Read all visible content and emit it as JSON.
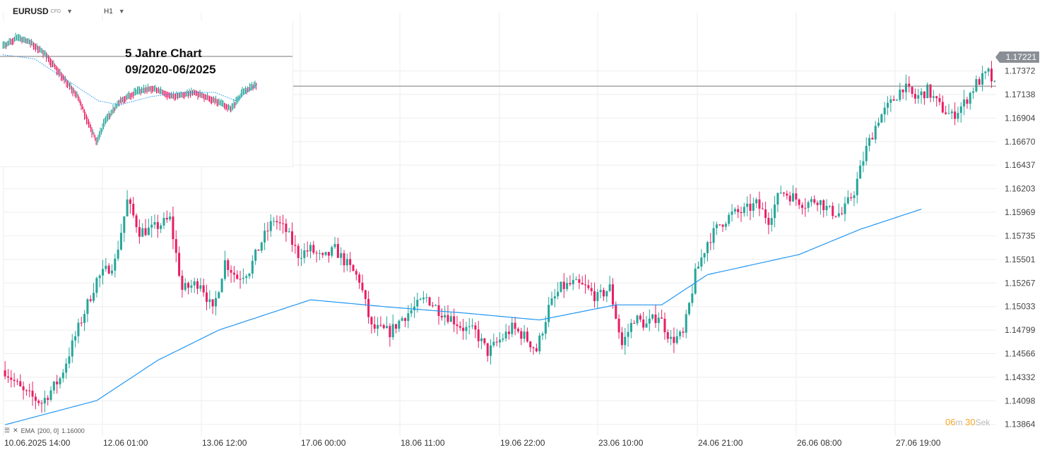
{
  "toolbar": {
    "symbol": "EURUSD",
    "symbol_type": "CFD",
    "timeframe": "H1",
    "caret_icon": "chevron-down-icon"
  },
  "inset": {
    "title_line1": "5 Jahre Chart",
    "title_line2": "09/2020-06/2025"
  },
  "indicator": {
    "label": "EMA",
    "params": "[200,  0]",
    "value": "1.16000",
    "color": "#2196f3"
  },
  "current_price": "1.17221",
  "countdown": {
    "min": "06",
    "min_unit": "m",
    "sec": "30",
    "sec_unit": "Sek"
  },
  "colors": {
    "up": "#26a69a",
    "down": "#e91e63",
    "ema": "#2196f3",
    "grid": "#eeeeee",
    "price_line": "#777777"
  },
  "chart_data": {
    "type": "candlestick",
    "instrument": "EURUSD",
    "timeframe": "H1",
    "ylim": [
      1.1375,
      1.1795
    ],
    "y_ticks": [
      "1.17372",
      "1.17138",
      "1.16904",
      "1.16670",
      "1.16437",
      "1.16203",
      "1.15969",
      "1.15735",
      "1.15501",
      "1.15267",
      "1.15033",
      "1.14799",
      "1.14566",
      "1.14332",
      "1.14098",
      "1.13864"
    ],
    "x_ticks": [
      "10.06.2025  14:00",
      "12.06  01:00",
      "13.06  12:00",
      "17.06  00:00",
      "18.06  11:00",
      "19.06  22:00",
      "23.06  10:00",
      "24.06  21:00",
      "26.06  08:00",
      "27.06  19:00"
    ],
    "close_path": [
      [
        0,
        1.144
      ],
      [
        6,
        1.1418
      ],
      [
        12,
        1.1408
      ],
      [
        18,
        1.1432
      ],
      [
        24,
        1.1482
      ],
      [
        30,
        1.153
      ],
      [
        36,
        1.1548
      ],
      [
        40,
        1.1608
      ],
      [
        44,
        1.1578
      ],
      [
        48,
        1.158
      ],
      [
        54,
        1.159
      ],
      [
        58,
        1.152
      ],
      [
        64,
        1.1528
      ],
      [
        68,
        1.1498
      ],
      [
        72,
        1.1548
      ],
      [
        76,
        1.1532
      ],
      [
        80,
        1.154
      ],
      [
        84,
        1.1568
      ],
      [
        88,
        1.159
      ],
      [
        92,
        1.1578
      ],
      [
        96,
        1.1555
      ],
      [
        100,
        1.156
      ],
      [
        104,
        1.155
      ],
      [
        108,
        1.156
      ],
      [
        112,
        1.1545
      ],
      [
        116,
        1.153
      ],
      [
        120,
        1.1482
      ],
      [
        126,
        1.1478
      ],
      [
        130,
        1.1492
      ],
      [
        134,
        1.1502
      ],
      [
        138,
        1.1512
      ],
      [
        142,
        1.15
      ],
      [
        146,
        1.1492
      ],
      [
        150,
        1.1482
      ],
      [
        154,
        1.1478
      ],
      [
        158,
        1.1458
      ],
      [
        162,
        1.147
      ],
      [
        166,
        1.1482
      ],
      [
        170,
        1.1474
      ],
      [
        174,
        1.146
      ],
      [
        178,
        1.1502
      ],
      [
        182,
        1.1522
      ],
      [
        186,
        1.1526
      ],
      [
        190,
        1.1522
      ],
      [
        194,
        1.1512
      ],
      [
        198,
        1.1522
      ],
      [
        202,
        1.1465
      ],
      [
        206,
        1.1492
      ],
      [
        210,
        1.1485
      ],
      [
        214,
        1.1495
      ],
      [
        218,
        1.147
      ],
      [
        222,
        1.1475
      ],
      [
        226,
        1.1535
      ],
      [
        230,
        1.1568
      ],
      [
        234,
        1.1585
      ],
      [
        238,
        1.1595
      ],
      [
        242,
        1.1598
      ],
      [
        246,
        1.1605
      ],
      [
        250,
        1.159
      ],
      [
        254,
        1.1618
      ],
      [
        258,
        1.1612
      ],
      [
        262,
        1.1605
      ],
      [
        266,
        1.161
      ],
      [
        270,
        1.1598
      ],
      [
        274,
        1.1595
      ],
      [
        278,
        1.1618
      ],
      [
        282,
        1.166
      ],
      [
        286,
        1.169
      ],
      [
        290,
        1.1705
      ],
      [
        294,
        1.1722
      ],
      [
        298,
        1.171
      ],
      [
        302,
        1.1718
      ],
      [
        306,
        1.1702
      ],
      [
        310,
        1.1692
      ],
      [
        314,
        1.1705
      ],
      [
        318,
        1.1725
      ],
      [
        322,
        1.1735
      ],
      [
        324,
        1.1722
      ]
    ],
    "n_candles": 325,
    "ema200": {
      "label": "EMA [200, 0]",
      "last_value": 1.16,
      "path": [
        [
          0,
          1.1386
        ],
        [
          30,
          1.141
        ],
        [
          50,
          1.145
        ],
        [
          70,
          1.148
        ],
        [
          100,
          1.151
        ],
        [
          125,
          1.1503
        ],
        [
          150,
          1.1497
        ],
        [
          175,
          1.149
        ],
        [
          200,
          1.1505
        ],
        [
          215,
          1.1505
        ],
        [
          230,
          1.1535
        ],
        [
          260,
          1.1555
        ],
        [
          280,
          1.158
        ],
        [
          300,
          1.16
        ]
      ]
    },
    "current_price": 1.17221
  }
}
